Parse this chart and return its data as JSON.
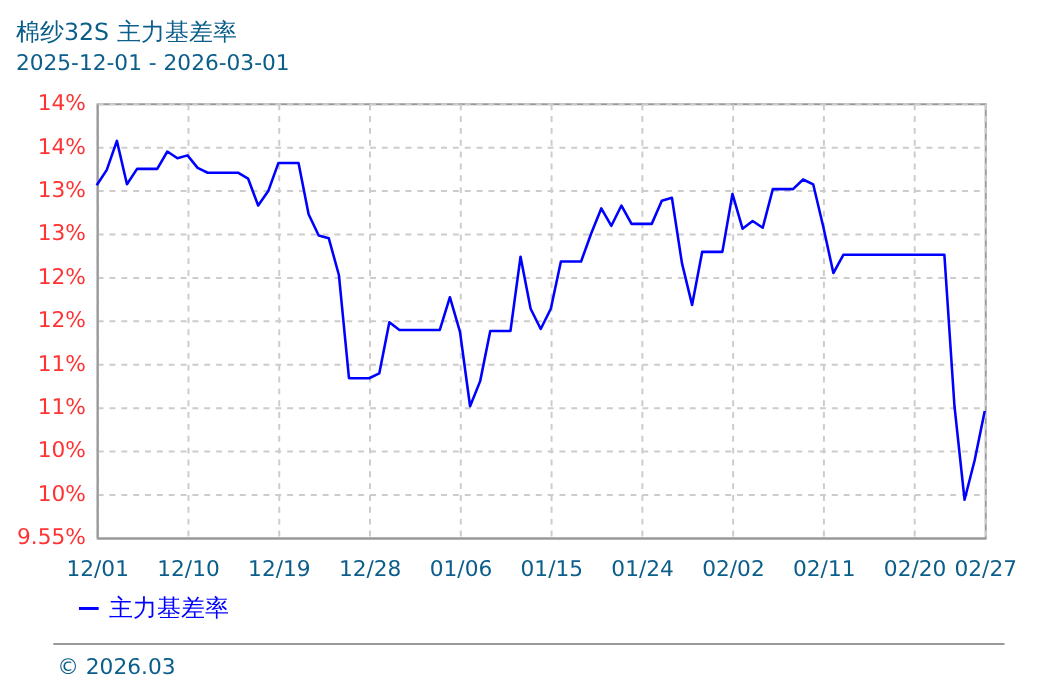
{
  "chart_data": {
    "type": "line",
    "title": "棉纱32S 主力基差率",
    "subtitle": "2025-12-01 - 2026-03-01",
    "x": [
      "2025-12-01",
      "2025-12-02",
      "2025-12-03",
      "2025-12-04",
      "2025-12-05",
      "2025-12-07",
      "2025-12-08",
      "2025-12-09",
      "2025-12-10",
      "2025-12-11",
      "2025-12-12",
      "2025-12-15",
      "2025-12-16",
      "2025-12-17",
      "2025-12-18",
      "2025-12-19",
      "2025-12-21",
      "2025-12-22",
      "2025-12-23",
      "2025-12-24",
      "2025-12-25",
      "2025-12-26",
      "2025-12-28",
      "2025-12-29",
      "2025-12-30",
      "2025-12-31",
      "2026-01-04",
      "2026-01-05",
      "2026-01-06",
      "2026-01-07",
      "2026-01-08",
      "2026-01-09",
      "2026-01-11",
      "2026-01-12",
      "2026-01-13",
      "2026-01-14",
      "2026-01-15",
      "2026-01-16",
      "2026-01-18",
      "2026-01-19",
      "2026-01-20",
      "2026-01-21",
      "2026-01-22",
      "2026-01-23",
      "2026-01-25",
      "2026-01-26",
      "2026-01-27",
      "2026-01-28",
      "2026-01-29",
      "2026-01-30",
      "2026-02-01",
      "2026-02-02",
      "2026-02-03",
      "2026-02-04",
      "2026-02-05",
      "2026-02-06",
      "2026-02-08",
      "2026-02-09",
      "2026-02-10",
      "2026-02-11",
      "2026-02-12",
      "2026-02-13",
      "2026-02-23",
      "2026-02-24",
      "2026-02-25",
      "2026-02-26",
      "2026-02-27"
    ],
    "series": [
      {
        "name": "主力基差率",
        "color": "#0000ff",
        "values": [
          13.2,
          13.36,
          13.66,
          13.21,
          13.37,
          13.37,
          13.55,
          13.48,
          13.51,
          13.38,
          13.33,
          13.33,
          13.27,
          12.99,
          13.14,
          13.43,
          13.43,
          12.9,
          12.68,
          12.65,
          12.27,
          11.2,
          11.2,
          11.25,
          11.78,
          11.7,
          11.7,
          12.04,
          11.68,
          10.91,
          11.17,
          11.69,
          11.69,
          12.46,
          11.92,
          11.71,
          11.92,
          12.41,
          12.41,
          12.7,
          12.96,
          12.78,
          12.99,
          12.8,
          12.8,
          13.04,
          13.07,
          12.39,
          11.96,
          12.51,
          12.51,
          13.11,
          12.75,
          12.83,
          12.76,
          13.16,
          13.16,
          13.26,
          13.21,
          12.77,
          12.29,
          12.48,
          12.48,
          10.91,
          9.94,
          10.35,
          10.86
        ]
      }
    ],
    "xlim": [
      "2025-12-01",
      "2026-02-27"
    ],
    "xticks": [
      {
        "value": "2025-12-01",
        "label": "12/01"
      },
      {
        "value": "2025-12-10",
        "label": "12/10"
      },
      {
        "value": "2025-12-19",
        "label": "12/19"
      },
      {
        "value": "2025-12-28",
        "label": "12/28"
      },
      {
        "value": "2026-01-06",
        "label": "01/06"
      },
      {
        "value": "2026-01-15",
        "label": "01/15"
      },
      {
        "value": "2026-01-24",
        "label": "01/24"
      },
      {
        "value": "2026-02-02",
        "label": "02/02"
      },
      {
        "value": "2026-02-11",
        "label": "02/11"
      },
      {
        "value": "2026-02-20",
        "label": "02/20"
      },
      {
        "value": "2026-02-27",
        "label": "02/27"
      }
    ],
    "ylim": [
      9.55,
      14.05
    ],
    "yticks": [
      {
        "value": 9.55,
        "label": "9.55%"
      },
      {
        "value": 10.0,
        "label": "10%"
      },
      {
        "value": 10.45,
        "label": "10%"
      },
      {
        "value": 10.9,
        "label": "11%"
      },
      {
        "value": 11.35,
        "label": "11%"
      },
      {
        "value": 11.8,
        "label": "12%"
      },
      {
        "value": 12.25,
        "label": "12%"
      },
      {
        "value": 12.7,
        "label": "13%"
      },
      {
        "value": 13.15,
        "label": "13%"
      },
      {
        "value": 13.6,
        "label": "14%"
      },
      {
        "value": 14.05,
        "label": "14%"
      }
    ],
    "grid": true,
    "legend": "bottom left",
    "marker": "none",
    "line_style": "solid",
    "annotations": [
      "© 2026.03"
    ]
  }
}
